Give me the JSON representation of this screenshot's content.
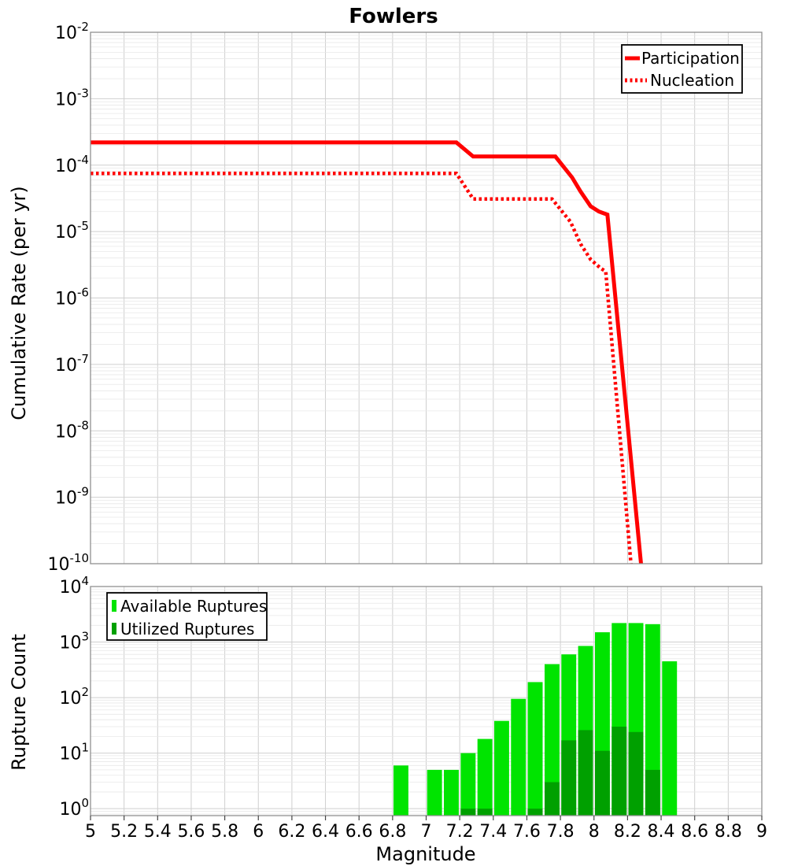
{
  "title": "Fowlers",
  "background": "#ffffff",
  "chart_data": [
    {
      "id": "cumulative-rate",
      "type": "line",
      "title": "Fowlers",
      "xlabel": "",
      "ylabel": "Cumulative Rate (per yr)",
      "xlim": [
        5,
        9
      ],
      "xtick_step": 0.2,
      "ylim": [
        1e-10,
        0.01
      ],
      "yscale": "log",
      "grid": true,
      "legend": {
        "position": "top-right"
      },
      "series": [
        {
          "name": "Participation",
          "color": "#ff0000",
          "style": "solid",
          "points": [
            [
              5.0,
              0.00022
            ],
            [
              7.18,
              0.00022
            ],
            [
              7.28,
              0.000135
            ],
            [
              7.77,
              0.000135
            ],
            [
              7.87,
              6.5e-05
            ],
            [
              7.92,
              4e-05
            ],
            [
              7.98,
              2.4e-05
            ],
            [
              8.03,
              2e-05
            ],
            [
              8.08,
              1.8e-05
            ],
            [
              8.28,
              1e-10
            ]
          ]
        },
        {
          "name": "Nucleation",
          "color": "#ff0000",
          "style": "dotted",
          "points": [
            [
              5.0,
              7.5e-05
            ],
            [
              7.18,
              7.5e-05
            ],
            [
              7.28,
              3.1e-05
            ],
            [
              7.75,
              3.1e-05
            ],
            [
              7.86,
              1.4e-05
            ],
            [
              7.92,
              6.5e-06
            ],
            [
              7.98,
              3.8e-06
            ],
            [
              8.04,
              2.8e-06
            ],
            [
              8.07,
              2.5e-06
            ],
            [
              8.22,
              1e-10
            ]
          ]
        }
      ]
    },
    {
      "id": "rupture-count",
      "type": "bar",
      "title": "",
      "xlabel": "Magnitude",
      "ylabel": "Rupture Count",
      "xlim": [
        5,
        9
      ],
      "xtick_step": 0.2,
      "ylim": [
        0.75,
        10000
      ],
      "yscale": "log",
      "grid": true,
      "bin_width": 0.1,
      "legend": {
        "position": "top-left"
      },
      "series": [
        {
          "name": "Available Ruptures",
          "color": "#00e400",
          "bins": [
            [
              6.8,
              6
            ],
            [
              7.0,
              5
            ],
            [
              7.1,
              5
            ],
            [
              7.2,
              10
            ],
            [
              7.3,
              18
            ],
            [
              7.4,
              38
            ],
            [
              7.5,
              95
            ],
            [
              7.6,
              190
            ],
            [
              7.7,
              400
            ],
            [
              7.8,
              600
            ],
            [
              7.9,
              850
            ],
            [
              8.0,
              1500
            ],
            [
              8.1,
              2200
            ],
            [
              8.2,
              2200
            ],
            [
              8.3,
              2100
            ],
            [
              8.4,
              450
            ]
          ]
        },
        {
          "name": "Utilized Ruptures",
          "color": "#00a000",
          "bins": [
            [
              7.2,
              1
            ],
            [
              7.3,
              1
            ],
            [
              7.6,
              1
            ],
            [
              7.7,
              3
            ],
            [
              7.8,
              17
            ],
            [
              7.9,
              26
            ],
            [
              8.0,
              11
            ],
            [
              8.1,
              30
            ],
            [
              8.2,
              24
            ],
            [
              8.3,
              5
            ]
          ]
        }
      ]
    }
  ]
}
